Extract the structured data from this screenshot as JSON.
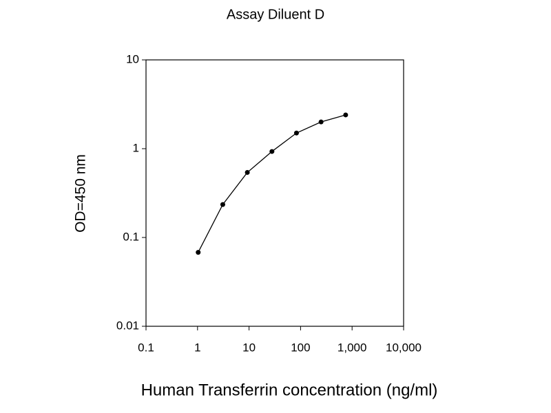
{
  "chart_data": {
    "type": "line",
    "title": "Assay Diluent D",
    "x_label": "Human Transferrin concentration (ng/ml)",
    "y_label": "OD=450 nm",
    "x": [
      1.03,
      3.09,
      9.26,
      27.8,
      83.3,
      250,
      750
    ],
    "values": [
      0.068,
      0.235,
      0.54,
      0.93,
      1.5,
      2.0,
      2.4
    ],
    "color": "#000000",
    "markers": true,
    "xscale": "log",
    "yscale": "log",
    "xlim": [
      0.1,
      10000
    ],
    "ylim": [
      0.01,
      10
    ],
    "xticks": [
      0.1,
      1,
      10,
      100,
      {
        "value": 1000,
        "label": "1,000"
      },
      {
        "value": 10000,
        "label": "10,000"
      }
    ],
    "yticks": [
      0.01,
      0.1,
      1,
      10
    ]
  }
}
